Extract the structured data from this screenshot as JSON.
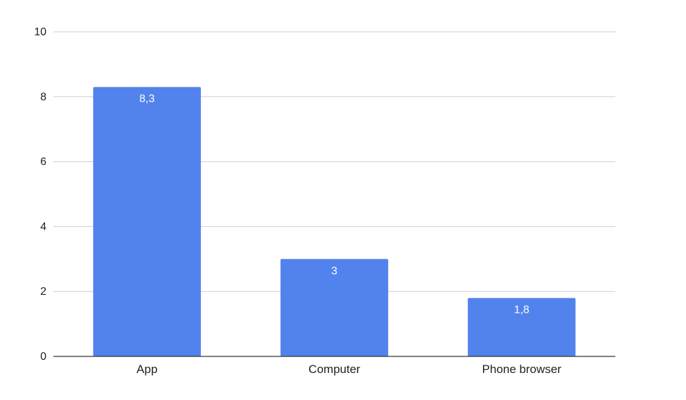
{
  "chart_data": {
    "type": "bar",
    "title": "",
    "xlabel": "",
    "ylabel": "",
    "categories": [
      "App",
      "Computer",
      "Phone browser"
    ],
    "values": [
      8.3,
      3,
      1.8
    ],
    "data_labels": [
      "8,3",
      "3",
      "1,8"
    ],
    "ylim": [
      0,
      10
    ],
    "yticks": [
      0,
      2,
      4,
      6,
      8,
      10
    ],
    "ytick_labels": [
      "0",
      "2",
      "4",
      "6",
      "8",
      "10"
    ],
    "grid": true,
    "legend": "none",
    "bar_color": "#5283ec"
  }
}
